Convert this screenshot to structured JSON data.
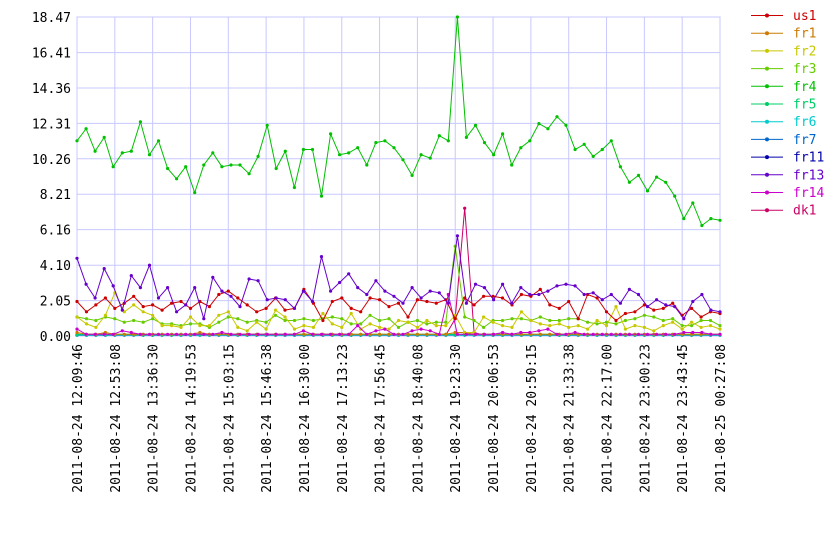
{
  "chart_data": {
    "type": "line",
    "title": "",
    "xlabel": "",
    "ylabel": "",
    "ylim": [
      0,
      18.47
    ],
    "grid": true,
    "legend_position": "right",
    "y_ticks": [
      "0.00",
      "2.05",
      "4.10",
      "6.16",
      "8.21",
      "10.26",
      "12.31",
      "14.36",
      "16.41",
      "18.47"
    ],
    "x_ticks": [
      "2011-08-24 12:09:46",
      "2011-08-24 12:53:08",
      "2011-08-24 13:36:30",
      "2011-08-24 14:19:53",
      "2011-08-24 15:03:15",
      "2011-08-24 15:46:38",
      "2011-08-24 16:30:00",
      "2011-08-24 17:13:23",
      "2011-08-24 17:56:45",
      "2011-08-24 18:40:08",
      "2011-08-24 19:23:30",
      "2011-08-24 20:06:53",
      "2011-08-24 20:50:15",
      "2011-08-24 21:33:38",
      "2011-08-24 22:17:00",
      "2011-08-24 23:00:23",
      "2011-08-24 23:43:45",
      "2011-08-25 00:27:08"
    ],
    "series": [
      {
        "name": "us1",
        "color": "#cc0000",
        "values": [
          2.0,
          1.4,
          1.8,
          2.2,
          1.6,
          1.9,
          2.3,
          1.7,
          1.8,
          1.5,
          1.9,
          2.0,
          1.6,
          2.0,
          1.7,
          2.4,
          2.6,
          2.2,
          1.8,
          1.4,
          1.6,
          2.2,
          1.5,
          1.6,
          2.7,
          1.9,
          0.9,
          2.0,
          2.2,
          1.6,
          1.4,
          2.2,
          2.1,
          1.7,
          1.9,
          1.1,
          2.1,
          2.0,
          1.9,
          2.1,
          1.0,
          2.2,
          1.8,
          2.3,
          2.3,
          2.2,
          1.8,
          2.4,
          2.3,
          2.7,
          1.8,
          1.6,
          2.0,
          1.0,
          2.4,
          2.2,
          1.4,
          0.9,
          1.3,
          1.4,
          1.8,
          1.5,
          1.6,
          1.9,
          1.2,
          1.6,
          1.1,
          1.4,
          1.3
        ]
      },
      {
        "name": "fr1",
        "color": "#cc7a00",
        "values": [
          0.2,
          0.1,
          0.1,
          0.2,
          0.1,
          0.1,
          0.1,
          0.1,
          0.1,
          0.1,
          0.1,
          0.1,
          0.1,
          0.2,
          0.1,
          0.1,
          0.1,
          0.1,
          0.1,
          0.1,
          0.1,
          0.1,
          0.1,
          0.1,
          0.1,
          0.1,
          0.1,
          0.1,
          0.1,
          0.1,
          0.1,
          0.1,
          0.1,
          0.1,
          0.1,
          0.1,
          0.1,
          0.1,
          0.1,
          0.1,
          0.2,
          0.2,
          0.1,
          0.1,
          0.1,
          0.1,
          0.1,
          0.1,
          0.1,
          0.1,
          0.1,
          0.1,
          0.1,
          0.1,
          0.1,
          0.1,
          0.1,
          0.1,
          0.1,
          0.1,
          0.1,
          0.1,
          0.1,
          0.1,
          0.1,
          0.1,
          0.1,
          0.1,
          0.1
        ]
      },
      {
        "name": "fr2",
        "color": "#c8c800",
        "values": [
          1.1,
          0.7,
          0.5,
          1.2,
          2.5,
          1.4,
          1.8,
          1.4,
          1.2,
          0.6,
          0.6,
          0.5,
          1.1,
          0.6,
          0.6,
          1.2,
          1.4,
          0.5,
          0.3,
          0.8,
          0.4,
          1.5,
          1.1,
          0.4,
          0.6,
          0.5,
          1.3,
          0.7,
          0.5,
          1.3,
          0.4,
          0.7,
          0.5,
          0.4,
          0.9,
          0.8,
          0.5,
          0.9,
          0.6,
          0.6,
          1.2,
          0.2,
          0.2,
          1.1,
          0.8,
          0.6,
          0.5,
          1.4,
          0.9,
          0.7,
          0.6,
          0.7,
          0.5,
          0.6,
          0.4,
          0.9,
          0.6,
          1.7,
          0.4,
          0.6,
          0.5,
          0.3,
          0.6,
          0.8,
          0.4,
          0.8,
          0.5,
          0.6,
          0.4
        ]
      },
      {
        "name": "fr3",
        "color": "#66cc00",
        "values": [
          1.1,
          1.0,
          0.9,
          1.1,
          1.0,
          0.8,
          0.9,
          0.8,
          1.0,
          0.7,
          0.7,
          0.6,
          0.7,
          0.7,
          0.5,
          0.8,
          1.1,
          1.0,
          0.8,
          0.9,
          0.8,
          1.2,
          0.9,
          0.9,
          1.0,
          0.9,
          1.0,
          1.1,
          1.0,
          0.7,
          0.7,
          1.2,
          0.9,
          1.0,
          0.5,
          0.8,
          0.9,
          0.7,
          0.8,
          0.8,
          5.2,
          1.1,
          0.9,
          0.5,
          0.9,
          0.9,
          1.0,
          1.0,
          0.9,
          1.1,
          0.9,
          0.9,
          1.0,
          1.0,
          0.8,
          0.7,
          0.8,
          0.7,
          0.9,
          1.0,
          1.2,
          1.1,
          0.9,
          1.0,
          0.6,
          0.6,
          0.9,
          0.9,
          0.6
        ]
      },
      {
        "name": "fr4",
        "color": "#00c000",
        "values": [
          11.3,
          12.0,
          10.7,
          11.5,
          9.8,
          10.6,
          10.7,
          12.4,
          10.5,
          11.3,
          9.7,
          9.1,
          9.8,
          8.3,
          9.9,
          10.6,
          9.8,
          9.9,
          9.9,
          9.4,
          10.4,
          12.2,
          9.7,
          10.7,
          8.6,
          10.8,
          10.8,
          8.1,
          11.7,
          10.5,
          10.6,
          10.9,
          9.9,
          11.2,
          11.3,
          10.9,
          10.2,
          9.3,
          10.5,
          10.3,
          11.6,
          11.3,
          18.47,
          11.5,
          12.2,
          11.2,
          10.5,
          11.7,
          9.9,
          10.9,
          11.3,
          12.3,
          12.0,
          12.7,
          12.2,
          10.8,
          11.1,
          10.4,
          10.8,
          11.3,
          9.8,
          8.9,
          9.3,
          8.4,
          9.2,
          8.9,
          8.1,
          6.8,
          7.7,
          6.4,
          6.8,
          6.7
        ]
      },
      {
        "name": "fr5",
        "color": "#00cc66",
        "values": [
          0.1,
          0.1,
          0.1,
          0.1,
          0.1,
          0.1,
          0.1,
          0.1,
          0.1,
          0.1,
          0.1,
          0.1,
          0.1,
          0.1,
          0.1,
          0.1,
          0.1,
          0.1,
          0.1,
          0.1,
          0.1,
          0.1,
          0.1,
          0.1,
          0.1,
          0.1,
          0.1,
          0.1,
          0.1,
          0.1,
          0.1,
          0.1,
          0.1,
          0.1,
          0.1,
          0.1,
          0.1,
          0.1,
          0.1,
          0.1,
          0.1,
          0.1,
          0.1,
          0.1,
          0.1,
          0.1,
          0.1,
          0.1,
          0.1,
          0.1,
          0.1,
          0.1,
          0.1,
          0.1,
          0.1,
          0.1,
          0.1,
          0.1,
          0.1,
          0.1,
          0.1,
          0.1,
          0.1,
          0.1,
          0.1,
          0.1,
          0.1,
          0.1,
          0.1
        ]
      },
      {
        "name": "fr6",
        "color": "#00cccc",
        "values": [
          0.05,
          0.05,
          0.05,
          0.05,
          0.05,
          0.05,
          0.05,
          0.05,
          0.05,
          0.05,
          0.05,
          0.05,
          0.05,
          0.05,
          0.05,
          0.05,
          0.05,
          0.05,
          0.05,
          0.05,
          0.05,
          0.05,
          0.05,
          0.05,
          0.05,
          0.05,
          0.05,
          0.05,
          0.05,
          0.05,
          0.05,
          0.05,
          0.05,
          0.05,
          0.05,
          0.05,
          0.05,
          0.05,
          0.05,
          0.05,
          0.05,
          0.05,
          0.05,
          0.05,
          0.05,
          0.05,
          0.05,
          0.05,
          0.05,
          0.05,
          0.05,
          0.05,
          0.05,
          0.05,
          0.05,
          0.05,
          0.05,
          0.05,
          0.05,
          0.05,
          0.05,
          0.05,
          0.05,
          0.05,
          0.05,
          0.05,
          0.05,
          0.05,
          0.05
        ]
      },
      {
        "name": "fr7",
        "color": "#0066cc",
        "values": [
          0.05,
          0.05,
          0.05,
          0.05,
          0.05,
          0.05,
          0.05,
          0.05,
          0.05,
          0.05,
          0.05,
          0.05,
          0.05,
          0.05,
          0.05,
          0.05,
          0.05,
          0.05,
          0.05,
          0.05,
          0.05,
          0.05,
          0.05,
          0.05,
          0.05,
          0.05,
          0.05,
          0.05,
          0.05,
          0.05,
          0.05,
          0.05,
          0.05,
          0.05,
          0.05,
          0.05,
          0.05,
          0.05,
          0.05,
          0.05,
          0.05,
          0.05,
          0.05,
          0.05,
          0.05,
          0.05,
          0.05,
          0.05,
          0.05,
          0.05,
          0.05,
          0.05,
          0.05,
          0.05,
          0.05,
          0.05,
          0.05,
          0.05,
          0.05,
          0.05,
          0.05,
          0.05,
          0.05,
          0.05,
          0.05,
          0.05,
          0.05,
          0.05,
          0.05
        ]
      },
      {
        "name": "fr11",
        "color": "#0000aa",
        "values": [
          0.05,
          0.05,
          0.05,
          0.05,
          0.05,
          0.05,
          0.05,
          0.05,
          0.05,
          0.05,
          0.05,
          0.05,
          0.05,
          0.05,
          0.05,
          0.05,
          0.05,
          0.05,
          0.05,
          0.05,
          0.05,
          0.05,
          0.05,
          0.05,
          0.05,
          0.05,
          0.05,
          0.05,
          0.05,
          0.05,
          0.05,
          0.05,
          0.05,
          0.05,
          0.05,
          0.05,
          0.05,
          0.05,
          0.05,
          0.05,
          0.05,
          0.05,
          0.05,
          0.05,
          0.05,
          0.05,
          0.05,
          0.05,
          0.05,
          0.05,
          0.05,
          0.05,
          0.05,
          0.05,
          0.05,
          0.05,
          0.05,
          0.05,
          0.05,
          0.05,
          0.05,
          0.05,
          0.05,
          0.05,
          0.05,
          0.05,
          0.05,
          0.05,
          0.05
        ]
      },
      {
        "name": "fr13",
        "color": "#6600cc",
        "values": [
          4.5,
          3.0,
          2.2,
          3.9,
          2.9,
          1.5,
          3.5,
          2.8,
          4.1,
          2.2,
          2.8,
          1.4,
          1.8,
          2.8,
          1.0,
          3.4,
          2.6,
          2.3,
          1.7,
          3.3,
          3.2,
          2.1,
          2.2,
          2.1,
          1.6,
          2.6,
          2.0,
          4.6,
          2.6,
          3.1,
          3.6,
          2.8,
          2.4,
          3.2,
          2.6,
          2.3,
          1.9,
          2.8,
          2.2,
          2.6,
          2.5,
          1.9,
          5.8,
          1.9,
          3.0,
          2.8,
          2.1,
          3.0,
          1.9,
          2.8,
          2.4,
          2.4,
          2.6,
          2.9,
          3.0,
          2.9,
          2.4,
          2.5,
          2.1,
          2.4,
          1.9,
          2.7,
          2.4,
          1.7,
          2.1,
          1.8,
          1.7,
          1.0,
          2.0,
          2.4,
          1.5,
          1.4
        ]
      },
      {
        "name": "fr14",
        "color": "#cc00cc",
        "values": [
          0.4,
          0.1,
          0.1,
          0.1,
          0.1,
          0.3,
          0.2,
          0.1,
          0.1,
          0.1,
          0.1,
          0.1,
          0.1,
          0.1,
          0.1,
          0.1,
          0.2,
          0.1,
          0.1,
          0.1,
          0.1,
          0.1,
          0.1,
          0.1,
          0.1,
          0.3,
          0.1,
          0.1,
          0.1,
          0.1,
          0.1,
          0.6,
          0.1,
          0.3,
          0.4,
          0.1,
          0.1,
          0.3,
          0.4,
          0.3,
          0.1,
          2.4,
          0.1,
          0.1,
          0.1,
          0.1,
          0.1,
          0.2,
          0.1,
          0.2,
          0.2,
          0.3,
          0.4,
          0.1,
          0.1,
          0.2,
          0.1,
          0.1,
          0.1,
          0.1,
          0.1,
          0.1,
          0.1,
          0.1,
          0.1,
          0.1,
          0.1,
          0.2,
          0.2,
          0.2,
          0.1,
          0.1
        ]
      },
      {
        "name": "dk1",
        "color": "#cc0066",
        "values": [
          0.05,
          0.05,
          0.05,
          0.05,
          0.05,
          0.05,
          0.05,
          0.05,
          0.05,
          0.05,
          0.05,
          0.05,
          0.05,
          0.05,
          0.05,
          0.05,
          0.05,
          0.05,
          0.05,
          0.05,
          0.05,
          0.05,
          0.05,
          0.05,
          0.05,
          0.05,
          0.05,
          0.05,
          0.05,
          0.05,
          0.05,
          0.05,
          0.05,
          0.05,
          0.05,
          0.05,
          0.05,
          0.05,
          0.05,
          0.05,
          1.0,
          7.4,
          0.2,
          0.05,
          0.05,
          0.05,
          0.05,
          0.05,
          0.05,
          0.05,
          0.05,
          0.05,
          0.05,
          0.05,
          0.05,
          0.05,
          0.05,
          0.05,
          0.05,
          0.05,
          0.05,
          0.05,
          0.05,
          0.05,
          0.05,
          0.05,
          0.05,
          0.05,
          0.05
        ]
      }
    ]
  }
}
